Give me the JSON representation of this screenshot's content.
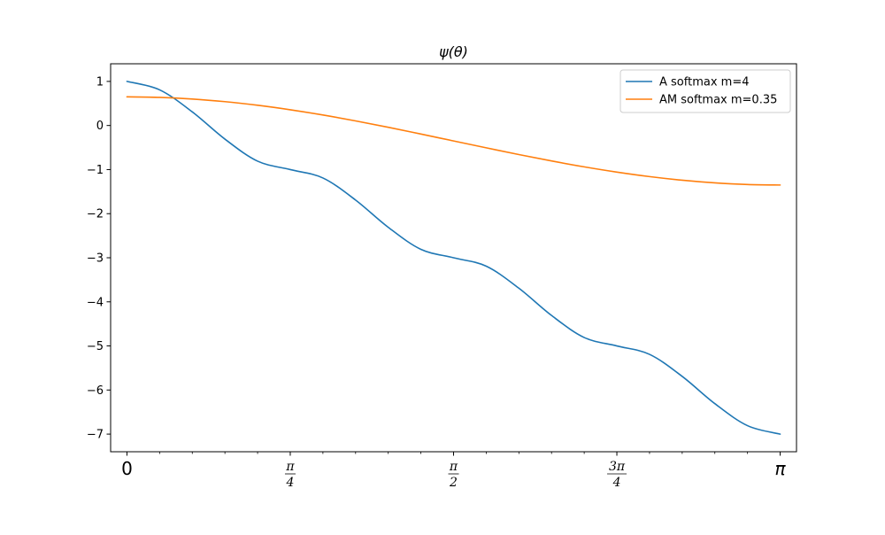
{
  "chart_data": {
    "type": "line",
    "title": "ψ(θ)",
    "xlabel": "",
    "ylabel": "",
    "xlim": [
      -0.0785,
      3.2201
    ],
    "ylim": [
      -7.4,
      1.4
    ],
    "grid": false,
    "legend_position": "upper right",
    "x_ticks": [
      {
        "value": 0,
        "kind": "plain",
        "label": "0"
      },
      {
        "value": 0.7854,
        "kind": "fraction",
        "numerator": "π",
        "denominator": "4"
      },
      {
        "value": 1.5708,
        "kind": "fraction",
        "numerator": "π",
        "denominator": "2"
      },
      {
        "value": 2.3562,
        "kind": "fraction",
        "numerator": "3π",
        "denominator": "4"
      },
      {
        "value": 3.1416,
        "kind": "plain",
        "label": "π"
      }
    ],
    "x_minor_ticks": [
      0.1571,
      0.3142,
      0.4712,
      0.6283,
      0.9425,
      1.0996,
      1.2566,
      1.4137,
      1.7279,
      1.885,
      2.042,
      2.1991,
      2.5133,
      2.6704,
      2.8274,
      2.9845
    ],
    "y_ticks": [
      {
        "value": 1,
        "label": "1"
      },
      {
        "value": 0,
        "label": "0"
      },
      {
        "value": -1,
        "label": "−1"
      },
      {
        "value": -2,
        "label": "−2"
      },
      {
        "value": -3,
        "label": "−3"
      },
      {
        "value": -4,
        "label": "−4"
      },
      {
        "value": -5,
        "label": "−5"
      },
      {
        "value": -6,
        "label": "−6"
      },
      {
        "value": -7,
        "label": "−7"
      }
    ],
    "series": [
      {
        "name": "A softmax m=4",
        "color": "#1f77b4",
        "x": [
          0,
          0.1571,
          0.3142,
          0.4712,
          0.6283,
          0.7854,
          0.9425,
          1.0996,
          1.2566,
          1.4137,
          1.5708,
          1.7279,
          1.885,
          2.042,
          2.1991,
          2.3562,
          2.5133,
          2.6704,
          2.8274,
          2.9845,
          3.1416
        ],
        "y": [
          1.0,
          0.809,
          0.309,
          -0.309,
          -0.809,
          -1.0,
          -1.191,
          -1.691,
          -2.309,
          -2.809,
          -3.0,
          -3.191,
          -3.691,
          -4.309,
          -4.809,
          -5.0,
          -5.191,
          -5.691,
          -6.309,
          -6.809,
          -7.0
        ]
      },
      {
        "name": "AM softmax m=0.35",
        "color": "#ff7f0e",
        "x": [
          0,
          0.1571,
          0.3142,
          0.4712,
          0.6283,
          0.7854,
          0.9425,
          1.0996,
          1.2566,
          1.4137,
          1.5708,
          1.7279,
          1.885,
          2.042,
          2.1991,
          2.3562,
          2.5133,
          2.6704,
          2.8274,
          2.9845,
          3.1416
        ],
        "y": [
          0.65,
          0.6377,
          0.601,
          0.541,
          0.459,
          0.357,
          0.238,
          0.104,
          -0.041,
          -0.194,
          -0.35,
          -0.506,
          -0.659,
          -0.804,
          -0.938,
          -1.057,
          -1.159,
          -1.241,
          -1.301,
          -1.338,
          -1.35
        ]
      }
    ]
  }
}
